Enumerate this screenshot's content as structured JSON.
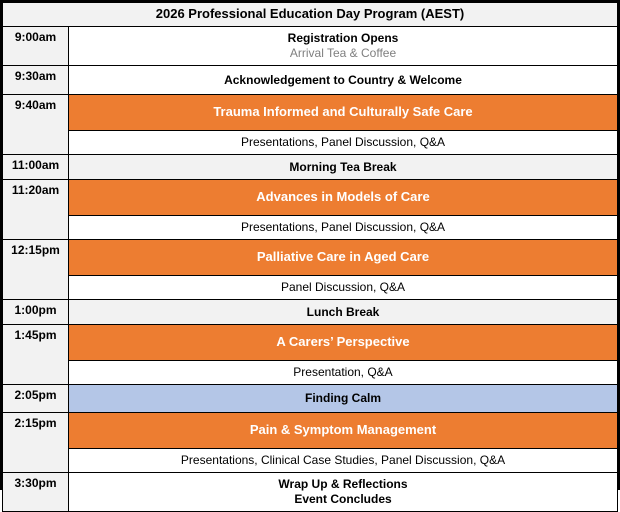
{
  "title": "2026 Professional Education Day Program (AEST)",
  "colors": {
    "orange": "#ED7D31",
    "blue": "#B4C6E7",
    "gray": "#F2F2F2",
    "subtext": "#7F7F7F"
  },
  "rows": [
    {
      "time": "9:00am",
      "type": "event",
      "lines": [
        {
          "text": "Registration Opens",
          "style": "bold"
        },
        {
          "text": "Arrival Tea & Coffee",
          "style": "subtext"
        }
      ]
    },
    {
      "time": "9:30am",
      "type": "event",
      "lines": [
        {
          "text": "Acknowledgement to Country & Welcome",
          "style": "bold"
        }
      ]
    },
    {
      "time": "9:40am",
      "type": "session",
      "session_title": "Trauma Informed and Culturally Safe Care",
      "session_detail": "Presentations, Panel Discussion, Q&A"
    },
    {
      "time": "11:00am",
      "type": "break",
      "lines": [
        {
          "text": "Morning Tea Break",
          "style": "bold"
        }
      ]
    },
    {
      "time": "11:20am",
      "type": "session",
      "session_title": "Advances in Models of Care",
      "session_detail": "Presentations, Panel Discussion, Q&A"
    },
    {
      "time": "12:15pm",
      "type": "session",
      "session_title": "Palliative Care in Aged Care",
      "session_detail": "Panel Discussion, Q&A"
    },
    {
      "time": "1:00pm",
      "type": "break",
      "lines": [
        {
          "text": "Lunch Break",
          "style": "bold"
        }
      ]
    },
    {
      "time": "1:45pm",
      "type": "session",
      "session_title": "A Carers’ Perspective",
      "session_detail": "Presentation, Q&A"
    },
    {
      "time": "2:05pm",
      "type": "highlight",
      "lines": [
        {
          "text": "Finding Calm",
          "style": "bold"
        }
      ]
    },
    {
      "time": "2:15pm",
      "type": "session",
      "session_title": "Pain & Symptom Management",
      "session_detail": "Presentations, Clinical Case Studies, Panel Discussion, Q&A"
    },
    {
      "time": "3:30pm",
      "type": "event",
      "lines": [
        {
          "text": "Wrap Up & Reflections",
          "style": "bold"
        },
        {
          "text": "Event Concludes",
          "style": "bold"
        }
      ]
    }
  ]
}
